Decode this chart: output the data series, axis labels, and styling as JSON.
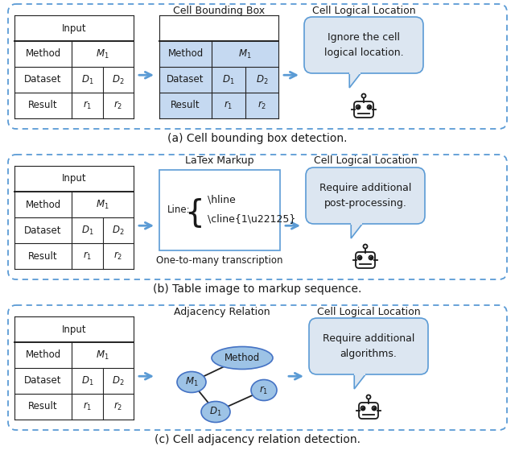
{
  "bg_color": "#ffffff",
  "border_color": "#5b9bd5",
  "border_dash": [
    5,
    4
  ],
  "table_line_color": "#333333",
  "cell_highlight_color": "#c5d9f1",
  "arrow_color": "#5b9bd5",
  "text_color": "#1a1a1a",
  "speech_bubble_color": "#dce6f1",
  "speech_bubble_border": "#5b9bd5",
  "panel_a_caption": "(a) Cell bounding box detection.",
  "panel_b_caption": "(b) Table image to markup sequence.",
  "panel_c_caption": "(c) Cell adjacency relation detection.",
  "col1_header": "Input",
  "col2_header_a": "Cell Bounding Box",
  "col2_header_b": "LaTex Markup",
  "col2_header_c": "Adjacency Relation",
  "col3_header": "Cell Logical Location",
  "bubble_a": "Ignore the cell\nlogical location.",
  "bubble_b": "Require additional\npost-processing.",
  "bubble_c": "Require additional\nalgorithms.",
  "one_to_many": "One-to-many transcription",
  "node_color": "#9dc3e6",
  "node_border": "#4472c4"
}
